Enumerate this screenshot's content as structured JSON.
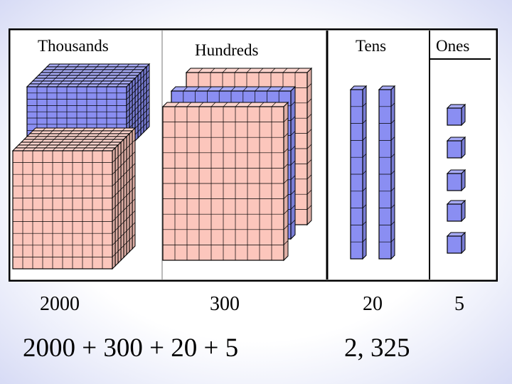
{
  "columns": [
    {
      "header": "Thousands",
      "value": "2000",
      "block_count": 2000
    },
    {
      "header": "Hundreds",
      "value": "300",
      "block_count": 300
    },
    {
      "header": "Tens",
      "value": "20",
      "block_count": 20
    },
    {
      "header": "Ones",
      "value": "5",
      "block_count": 5
    }
  ],
  "expression": "2000 + 300 + 20 + 5",
  "result": "2, 325",
  "colors": {
    "pink_face": "#fcc6bc",
    "blue_face": "#8a8ef2",
    "outline": "#000000",
    "frame": "#000000"
  }
}
